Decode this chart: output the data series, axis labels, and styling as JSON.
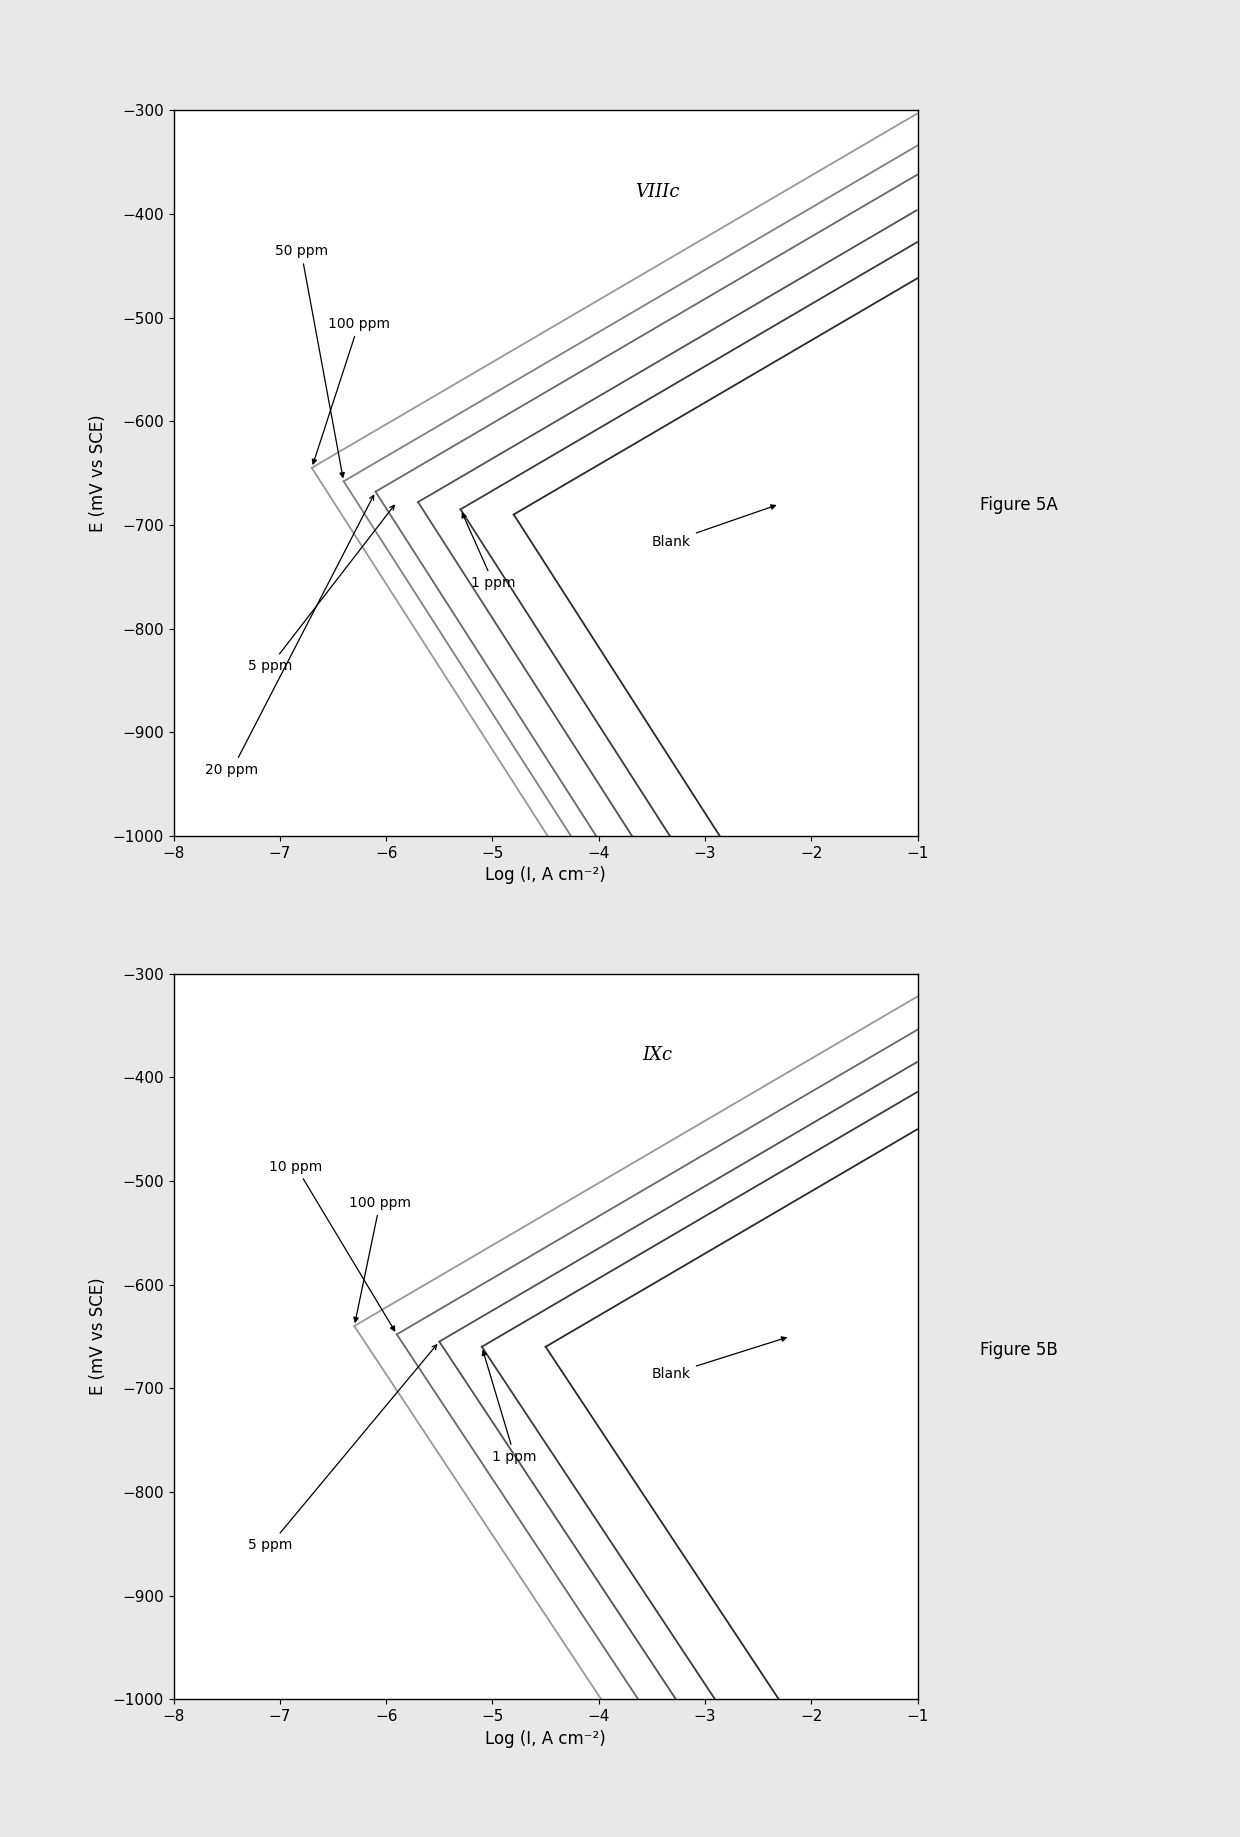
{
  "fig_width": 12.4,
  "fig_height": 18.37,
  "background_color": "#e8e8e8",
  "plot_background": "#ffffff",
  "xlim": [
    -8,
    -1
  ],
  "ylim": [
    -1000,
    -300
  ],
  "xticks": [
    -8,
    -7,
    -6,
    -5,
    -4,
    -3,
    -2,
    -1
  ],
  "yticks": [
    -1000,
    -900,
    -800,
    -700,
    -600,
    -500,
    -400,
    -300
  ],
  "xlabel": "Log (I, A cm⁻²)",
  "ylabel": "E (mV vs SCE)",
  "chart1_label": "VIIIc",
  "chart2_label": "IXc",
  "figure_label_A": "Figure 5A",
  "figure_label_B": "Figure 5B",
  "font_size_tick": 11,
  "font_size_label": 12,
  "font_size_annot": 10,
  "font_size_chart_label": 13,
  "font_size_fig_label": 12
}
